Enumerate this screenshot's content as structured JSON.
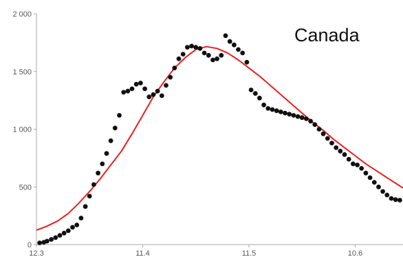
{
  "chart_data": {
    "type": "scatter",
    "title": "Canada",
    "xlabel": "",
    "ylabel": "",
    "x_tick_labels": [
      "12.3",
      "11.4",
      "11.5",
      "10.6"
    ],
    "y_ticks": [
      0,
      500,
      1000,
      1500,
      2000
    ],
    "y_tick_labels": [
      "0",
      "500",
      "1 000",
      "1 500",
      "2 000"
    ],
    "xlim": [
      0,
      3.45
    ],
    "ylim": [
      0,
      2000
    ],
    "grid": false,
    "colors": {
      "points": "#111111",
      "fit": "#ee1c1c",
      "axis": "#aaaaaa"
    },
    "series": [
      {
        "kind": "points",
        "x": [
          0.03,
          0.07,
          0.1,
          0.14,
          0.18,
          0.22,
          0.26,
          0.3,
          0.34,
          0.38,
          0.42,
          0.46,
          0.5,
          0.54,
          0.58,
          0.62,
          0.66,
          0.7,
          0.74,
          0.78,
          0.82,
          0.86,
          0.9,
          0.94,
          0.98,
          1.02,
          1.06,
          1.1,
          1.14,
          1.18,
          1.22,
          1.26,
          1.3,
          1.34,
          1.38,
          1.42,
          1.46,
          1.5,
          1.54,
          1.58,
          1.62,
          1.66,
          1.7,
          1.74,
          1.78,
          1.82,
          1.86,
          1.9,
          1.94,
          1.98,
          2.02,
          2.06,
          2.1,
          2.14,
          2.18,
          2.22,
          2.26,
          2.3,
          2.34,
          2.38,
          2.42,
          2.46,
          2.5,
          2.54,
          2.58,
          2.62,
          2.66,
          2.7,
          2.74,
          2.78,
          2.82,
          2.86,
          2.9,
          2.94,
          2.98,
          3.02,
          3.06,
          3.1,
          3.14,
          3.18,
          3.22,
          3.26,
          3.3,
          3.34,
          3.38,
          3.42
        ],
        "y": [
          15,
          20,
          30,
          45,
          60,
          80,
          100,
          120,
          150,
          170,
          230,
          330,
          420,
          520,
          620,
          700,
          790,
          900,
          1010,
          1120,
          1320,
          1330,
          1350,
          1390,
          1400,
          1350,
          1280,
          1300,
          1330,
          1290,
          1380,
          1450,
          1530,
          1610,
          1650,
          1710,
          1720,
          1710,
          1700,
          1660,
          1640,
          1600,
          1610,
          1640,
          1810,
          1760,
          1730,
          1690,
          1660,
          1580,
          1340,
          1310,
          1270,
          1210,
          1180,
          1170,
          1160,
          1150,
          1140,
          1130,
          1120,
          1110,
          1100,
          1090,
          1070,
          1040,
          1000,
          960,
          920,
          880,
          840,
          810,
          780,
          740,
          700,
          690,
          660,
          620,
          580,
          540,
          500,
          460,
          430,
          400,
          390,
          385
        ]
      },
      {
        "kind": "fit",
        "x": [
          0.0,
          0.1,
          0.2,
          0.3,
          0.4,
          0.5,
          0.6,
          0.7,
          0.8,
          0.9,
          1.0,
          1.1,
          1.2,
          1.3,
          1.4,
          1.5,
          1.6,
          1.7,
          1.8,
          1.9,
          2.0,
          2.1,
          2.2,
          2.3,
          2.4,
          2.5,
          2.6,
          2.7,
          2.8,
          2.9,
          3.0,
          3.1,
          3.2,
          3.3,
          3.4,
          3.45
        ],
        "y": [
          125,
          160,
          205,
          270,
          360,
          460,
          570,
          690,
          810,
          960,
          1120,
          1280,
          1410,
          1530,
          1620,
          1690,
          1715,
          1700,
          1660,
          1600,
          1530,
          1460,
          1380,
          1300,
          1220,
          1140,
          1060,
          990,
          910,
          840,
          770,
          700,
          640,
          580,
          520,
          490
        ]
      }
    ]
  }
}
